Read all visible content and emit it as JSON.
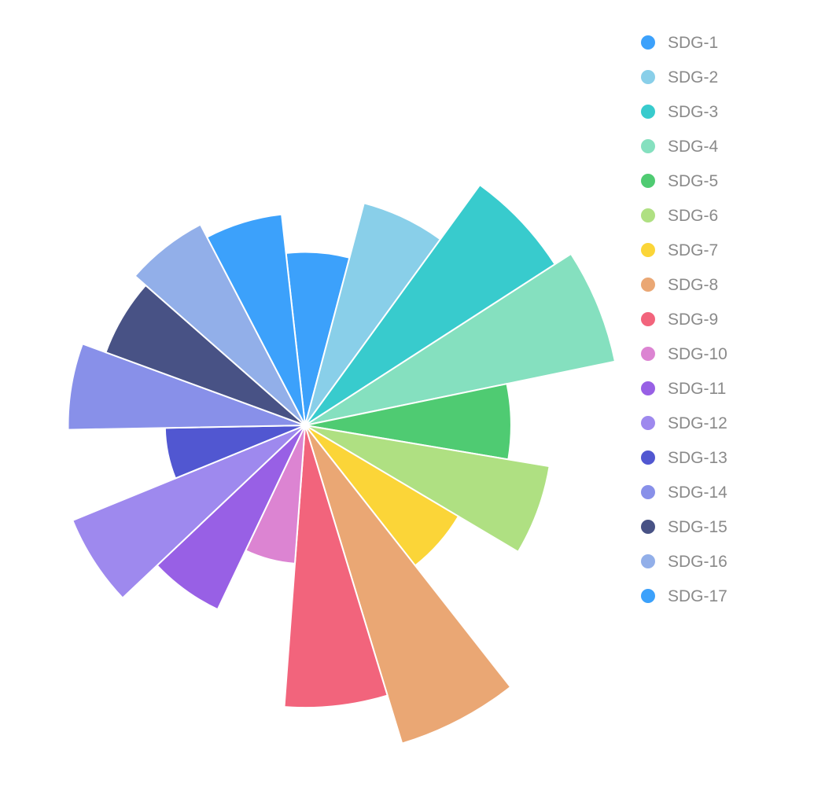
{
  "chart_data": {
    "type": "nightingale-rose",
    "title": "",
    "legend_position": "right",
    "categories": [
      "SDG-1",
      "SDG-2",
      "SDG-3",
      "SDG-4",
      "SDG-5",
      "SDG-6",
      "SDG-7",
      "SDG-8",
      "SDG-9",
      "SDG-10",
      "SDG-11",
      "SDG-12",
      "SDG-13",
      "SDG-14",
      "SDG-15",
      "SDG-16",
      "SDG-17"
    ],
    "values": [
      245,
      325,
      420,
      447,
      291,
      350,
      252,
      470,
      399,
      196,
      288,
      355,
      198,
      335,
      300,
      320,
      300
    ],
    "colors": [
      "#3ca1fb",
      "#89cfe9",
      "#38cbcd",
      "#85e0bf",
      "#4fcb72",
      "#afe082",
      "#fbd538",
      "#eaa774",
      "#f2647c",
      "#dc84d2",
      "#9860e5",
      "#9e89ee",
      "#5157d1",
      "#8890e9",
      "#485285",
      "#92afe9",
      "#3ca1fb"
    ]
  }
}
